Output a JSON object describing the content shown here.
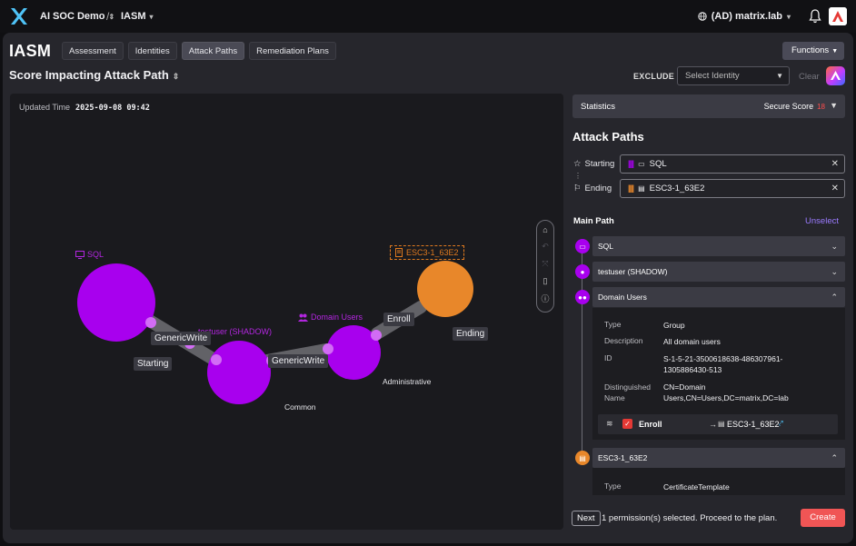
{
  "topbar": {
    "workspace": "AI SOC Demo",
    "separator": "/",
    "section": "IASM",
    "tenant": "(AD) matrix.lab"
  },
  "page": {
    "title": "IASM",
    "tabs": [
      "Assessment",
      "Identities",
      "Attack Paths",
      "Remediation Plans"
    ],
    "active_tab": "Attack Paths",
    "functions_label": "Functions",
    "subtitle": "Score Impacting Attack Path",
    "exclude_label": "EXCLUDE",
    "select_placeholder": "Select Identity",
    "clear_label": "Clear"
  },
  "graph": {
    "updated_label": "Updated Time",
    "updated_value": "2025-09-08 09:42",
    "nodes": {
      "sql": "SQL",
      "testuser": "testuser (SHADOW)",
      "domain_users": "Domain Users",
      "esc": "ESC3-1_63E2"
    },
    "edges": {
      "e1": "GenericWrite",
      "e2": "GenericWrite",
      "e3": "Enroll"
    },
    "tiers": {
      "starting": "Starting",
      "common": "Common",
      "administrative": "Administrative",
      "ending": "Ending"
    },
    "colors": {
      "purple": "#a800ee",
      "orange": "#e8872a"
    }
  },
  "side": {
    "statistics_label": "Statistics",
    "secure_score_label": "Secure Score",
    "secure_score_value": "18",
    "attack_paths_title": "Attack Paths",
    "starting_label": "Starting",
    "starting_value": "SQL",
    "ending_label": "Ending",
    "ending_value": "ESC3-1_63E2",
    "main_path_label": "Main Path",
    "unselect_label": "Unselect",
    "path": [
      {
        "label": "SQL"
      },
      {
        "label": "testuser (SHADOW)"
      },
      {
        "label": "Domain Users"
      },
      {
        "label": "ESC3-1_63E2"
      }
    ],
    "details": {
      "type_key": "Type",
      "type_val": "Group",
      "desc_key": "Description",
      "desc_val": "All domain users",
      "id_key": "ID",
      "id_val": "S-1-5-21-3500618638-486307961-1305886430-513",
      "dn_key": "Distinguished Name",
      "dn_val": "CN=Domain Users,CN=Users,DC=matrix,DC=lab"
    },
    "permission": {
      "label": "Enroll",
      "target": "ESC3-1_63E2"
    },
    "details2": {
      "type_key": "Type",
      "type_val": "CertificateTemplate"
    },
    "next_label": "Next",
    "next_text": "1 permission(s) selected. Proceed to the plan.",
    "create_label": "Create"
  }
}
